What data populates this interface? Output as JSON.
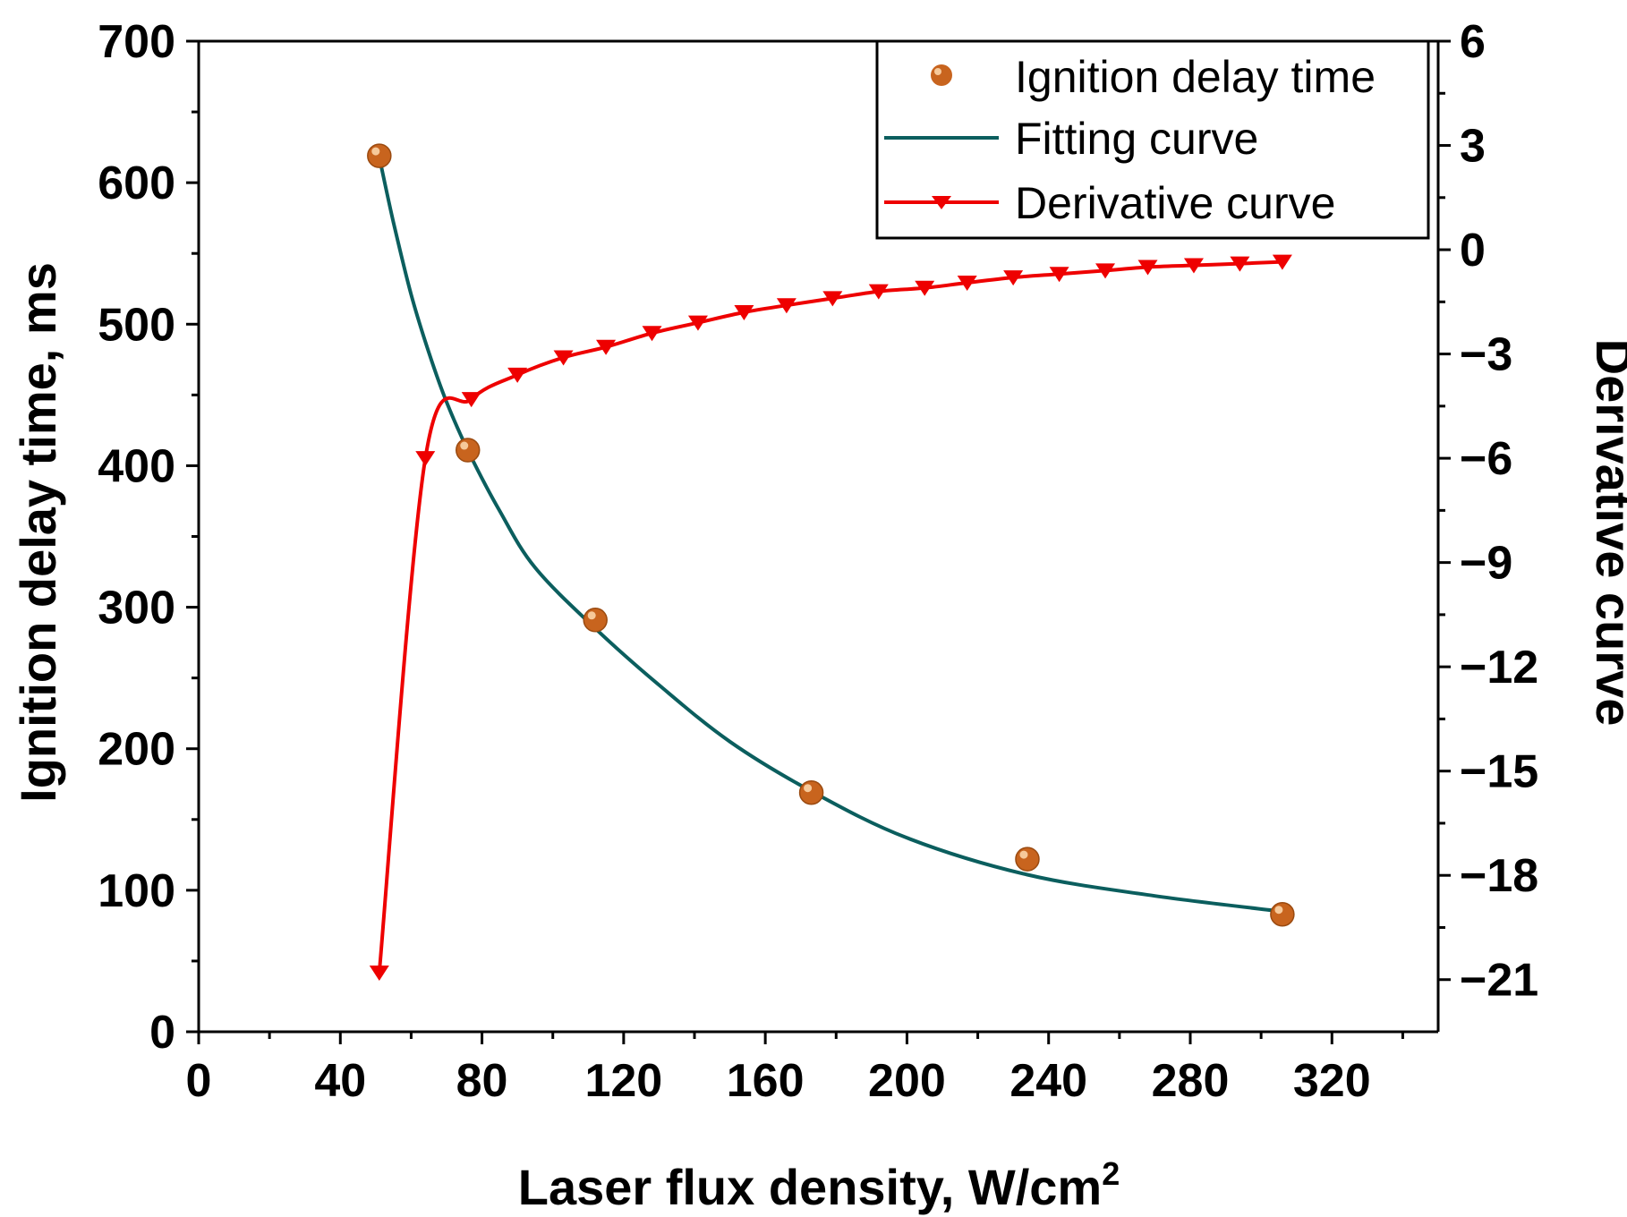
{
  "chart_data": {
    "type": "line",
    "xlabel": "Laser flux density, W/cm",
    "xlabel_sup": "2",
    "ylabel_left": "Ignition delay time, ms",
    "ylabel_right": "Derivative curve",
    "xlim": [
      0,
      350
    ],
    "ylim_left": [
      0,
      700
    ],
    "ylim_right": [
      -22.5,
      6
    ],
    "x_ticks": [
      0,
      40,
      80,
      120,
      160,
      200,
      240,
      280,
      320
    ],
    "y_left_ticks": [
      0,
      100,
      200,
      300,
      400,
      500,
      600,
      700
    ],
    "y_right_ticks": [
      6,
      3,
      0,
      -3,
      -6,
      -9,
      -12,
      -15,
      -18,
      -21
    ],
    "grid": false,
    "legend_position": "top-right",
    "series": [
      {
        "name": "Ignition delay time",
        "kind": "scatter",
        "axis": "left",
        "color": "#C8641E",
        "x": [
          51,
          76,
          112,
          173,
          234,
          306
        ],
        "y": [
          619,
          411,
          291,
          169,
          122,
          83
        ]
      },
      {
        "name": "Fitting curve",
        "kind": "line",
        "axis": "left",
        "color": "#0B5E5E",
        "x": [
          51,
          55,
          60,
          65,
          70,
          76,
          85,
          95,
          112,
          130,
          150,
          173,
          200,
          234,
          270,
          306
        ],
        "y": [
          618,
          572,
          521,
          480,
          445,
          411,
          368,
          328,
          285,
          245,
          205,
          170,
          137,
          111,
          96,
          85
        ]
      },
      {
        "name": "Derivative curve",
        "kind": "line-markers",
        "axis": "right",
        "color": "#EE0000",
        "x": [
          51,
          64,
          77,
          90,
          103,
          115,
          128,
          141,
          154,
          166,
          179,
          192,
          205,
          217,
          230,
          243,
          256,
          268,
          281,
          294,
          306
        ],
        "y": [
          -20.8,
          -6.0,
          -4.3,
          -3.6,
          -3.1,
          -2.8,
          -2.4,
          -2.1,
          -1.8,
          -1.6,
          -1.4,
          -1.2,
          -1.1,
          -0.95,
          -0.8,
          -0.7,
          -0.6,
          -0.5,
          -0.45,
          -0.4,
          -0.35
        ]
      }
    ]
  }
}
